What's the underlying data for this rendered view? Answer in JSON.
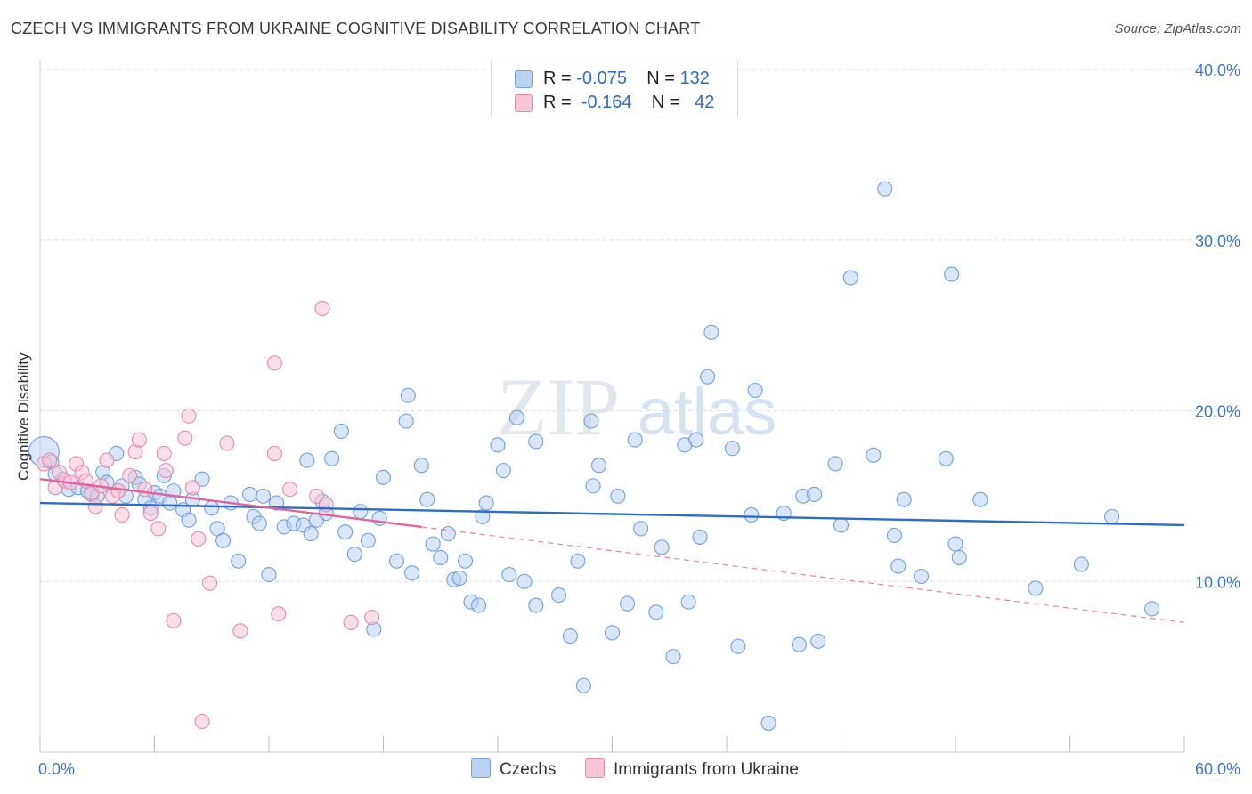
{
  "title": "CZECH VS IMMIGRANTS FROM UKRAINE COGNITIVE DISABILITY CORRELATION CHART",
  "source": "Source: ZipAtlas.com",
  "watermark": {
    "zip": "ZIP",
    "atlas": "atlas"
  },
  "legend": {
    "r_label": "R =",
    "n_label": "N =",
    "series": [
      {
        "name": "Czechs",
        "r": "-0.075",
        "n": "132",
        "color": "#6fa0e0",
        "fill": "#b9d2f3",
        "line": "#2f6cc7"
      },
      {
        "name": "Immigrants from Ukraine",
        "r": "-0.164",
        "n": "42",
        "color": "#e88aab",
        "fill": "#f7c5d6",
        "line": "#e0649a"
      }
    ]
  },
  "chart_data": {
    "type": "scatter",
    "xlabel": "",
    "ylabel": "Cognitive Disability",
    "xlim": [
      0,
      60
    ],
    "ylim": [
      0,
      40
    ],
    "x_tick_labels": [
      "0.0%",
      "60.0%"
    ],
    "y_ticks": [
      10,
      20,
      30,
      40
    ],
    "y_tick_labels": [
      "10.0%",
      "20.0%",
      "30.0%",
      "40.0%"
    ],
    "grid": "horizontal dashed",
    "legend_position": "top-center",
    "series": [
      {
        "name": "Czechs",
        "trend": {
          "x0": 0,
          "y0": 14.6,
          "x1": 60,
          "y1": 13.3,
          "extends_dashed": false
        },
        "points": [
          [
            0.2,
            17.6
          ],
          [
            0.6,
            17.0
          ],
          [
            0.8,
            16.3
          ],
          [
            1.2,
            16.0
          ],
          [
            1.5,
            15.4
          ],
          [
            2.0,
            15.5
          ],
          [
            2.5,
            15.3
          ],
          [
            2.7,
            15.1
          ],
          [
            3.0,
            15.0
          ],
          [
            3.3,
            16.4
          ],
          [
            3.5,
            15.8
          ],
          [
            4.0,
            17.5
          ],
          [
            4.3,
            15.6
          ],
          [
            4.5,
            15.0
          ],
          [
            5.0,
            16.1
          ],
          [
            5.2,
            15.7
          ],
          [
            5.5,
            14.8
          ],
          [
            5.8,
            14.3
          ],
          [
            6.0,
            15.2
          ],
          [
            6.3,
            15.0
          ],
          [
            6.5,
            16.2
          ],
          [
            6.8,
            14.6
          ],
          [
            7.0,
            15.3
          ],
          [
            7.5,
            14.2
          ],
          [
            7.8,
            13.6
          ],
          [
            8.0,
            14.8
          ],
          [
            8.5,
            16.0
          ],
          [
            9.0,
            14.3
          ],
          [
            9.3,
            13.1
          ],
          [
            9.6,
            12.4
          ],
          [
            10.0,
            14.6
          ],
          [
            10.4,
            11.2
          ],
          [
            11.0,
            15.1
          ],
          [
            11.2,
            13.8
          ],
          [
            11.5,
            13.4
          ],
          [
            11.7,
            15.0
          ],
          [
            12.0,
            10.4
          ],
          [
            12.4,
            14.6
          ],
          [
            12.8,
            13.2
          ],
          [
            13.3,
            13.4
          ],
          [
            13.8,
            13.3
          ],
          [
            14.0,
            17.1
          ],
          [
            14.2,
            12.8
          ],
          [
            14.5,
            13.6
          ],
          [
            14.8,
            14.7
          ],
          [
            15.0,
            14.0
          ],
          [
            15.3,
            17.2
          ],
          [
            15.8,
            18.8
          ],
          [
            16.0,
            12.9
          ],
          [
            16.5,
            11.6
          ],
          [
            16.8,
            14.1
          ],
          [
            17.2,
            12.4
          ],
          [
            17.5,
            7.2
          ],
          [
            17.8,
            13.7
          ],
          [
            18.0,
            16.1
          ],
          [
            18.7,
            11.2
          ],
          [
            19.2,
            19.4
          ],
          [
            19.3,
            20.9
          ],
          [
            19.5,
            10.5
          ],
          [
            20.0,
            16.8
          ],
          [
            20.3,
            14.8
          ],
          [
            20.6,
            12.2
          ],
          [
            21.0,
            11.4
          ],
          [
            21.4,
            12.8
          ],
          [
            21.7,
            10.1
          ],
          [
            22.0,
            10.2
          ],
          [
            22.3,
            11.2
          ],
          [
            22.6,
            8.8
          ],
          [
            23.0,
            8.6
          ],
          [
            23.2,
            13.8
          ],
          [
            23.4,
            14.6
          ],
          [
            24.0,
            18.0
          ],
          [
            24.3,
            16.5
          ],
          [
            24.6,
            10.4
          ],
          [
            25.0,
            19.6
          ],
          [
            25.4,
            10.0
          ],
          [
            26.0,
            18.2
          ],
          [
            26.0,
            8.6
          ],
          [
            27.2,
            9.2
          ],
          [
            27.8,
            6.8
          ],
          [
            28.2,
            11.2
          ],
          [
            28.5,
            3.9
          ],
          [
            28.9,
            19.4
          ],
          [
            29.0,
            15.6
          ],
          [
            29.3,
            16.8
          ],
          [
            30.0,
            7.0
          ],
          [
            30.3,
            15.0
          ],
          [
            30.8,
            8.7
          ],
          [
            31.2,
            18.3
          ],
          [
            31.5,
            13.1
          ],
          [
            32.3,
            8.2
          ],
          [
            32.6,
            12.0
          ],
          [
            33.2,
            5.6
          ],
          [
            33.8,
            18.0
          ],
          [
            34.0,
            8.8
          ],
          [
            34.4,
            18.3
          ],
          [
            34.6,
            12.6
          ],
          [
            35.0,
            22.0
          ],
          [
            35.2,
            24.6
          ],
          [
            36.3,
            17.8
          ],
          [
            36.6,
            6.2
          ],
          [
            37.3,
            13.9
          ],
          [
            37.5,
            21.2
          ],
          [
            38.2,
            1.7
          ],
          [
            39.0,
            14.0
          ],
          [
            39.8,
            6.3
          ],
          [
            40.0,
            15.0
          ],
          [
            40.6,
            15.1
          ],
          [
            40.8,
            6.5
          ],
          [
            41.7,
            16.9
          ],
          [
            42.0,
            13.3
          ],
          [
            42.5,
            27.8
          ],
          [
            43.7,
            17.4
          ],
          [
            44.3,
            33.0
          ],
          [
            44.8,
            12.7
          ],
          [
            45.0,
            10.9
          ],
          [
            45.3,
            14.8
          ],
          [
            46.2,
            10.3
          ],
          [
            47.5,
            17.2
          ],
          [
            47.8,
            28.0
          ],
          [
            48.0,
            12.2
          ],
          [
            48.2,
            11.4
          ],
          [
            49.3,
            14.8
          ],
          [
            52.2,
            9.6
          ],
          [
            54.6,
            11.0
          ],
          [
            56.2,
            13.8
          ],
          [
            58.3,
            8.4
          ]
        ]
      },
      {
        "name": "Immigrants from Ukraine",
        "trend": {
          "x0": 0,
          "y0": 16.0,
          "x1": 20.0,
          "y1": 13.2,
          "dashed_to_x": 60,
          "dashed_to_y": 7.6
        },
        "points": [
          [
            0.2,
            16.9
          ],
          [
            0.5,
            17.1
          ],
          [
            0.8,
            15.5
          ],
          [
            1.0,
            16.4
          ],
          [
            1.3,
            15.9
          ],
          [
            1.6,
            15.8
          ],
          [
            1.9,
            16.9
          ],
          [
            2.2,
            16.4
          ],
          [
            2.4,
            15.9
          ],
          [
            2.7,
            15.2
          ],
          [
            2.9,
            14.4
          ],
          [
            3.2,
            15.6
          ],
          [
            3.5,
            17.1
          ],
          [
            3.8,
            15.0
          ],
          [
            4.1,
            15.3
          ],
          [
            4.3,
            13.9
          ],
          [
            4.7,
            16.2
          ],
          [
            5.0,
            17.6
          ],
          [
            5.2,
            18.3
          ],
          [
            5.5,
            15.4
          ],
          [
            5.8,
            14.0
          ],
          [
            6.2,
            13.1
          ],
          [
            6.5,
            17.5
          ],
          [
            6.6,
            16.5
          ],
          [
            7.0,
            7.7
          ],
          [
            7.6,
            18.4
          ],
          [
            7.8,
            19.7
          ],
          [
            8.0,
            15.5
          ],
          [
            8.3,
            12.5
          ],
          [
            8.5,
            1.8
          ],
          [
            8.9,
            9.9
          ],
          [
            9.8,
            18.1
          ],
          [
            10.5,
            7.1
          ],
          [
            12.3,
            17.5
          ],
          [
            12.3,
            22.8
          ],
          [
            12.5,
            8.1
          ],
          [
            13.1,
            15.4
          ],
          [
            14.5,
            15.0
          ],
          [
            14.8,
            26.0
          ],
          [
            15.0,
            14.5
          ],
          [
            16.3,
            7.6
          ],
          [
            17.4,
            7.9
          ]
        ]
      }
    ]
  }
}
